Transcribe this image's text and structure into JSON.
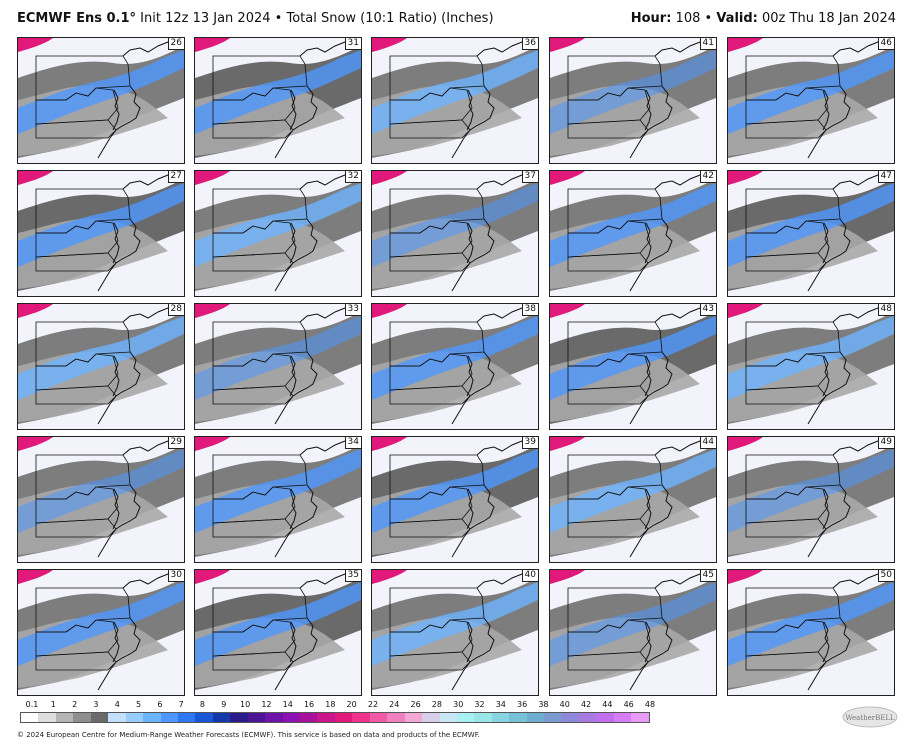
{
  "header": {
    "model": "ECMWF Ens 0.1°",
    "init": "Init 12z 13 Jan 2024",
    "bullet": "•",
    "product": "Total Snow (10:1 Ratio) (Inches)",
    "hour_label": "Hour:",
    "hour_value": "108",
    "valid_label": "Valid:",
    "valid_value": "00z Thu 18 Jan 2024"
  },
  "members": [
    "26",
    "31",
    "36",
    "41",
    "46",
    "27",
    "32",
    "37",
    "42",
    "47",
    "28",
    "33",
    "38",
    "43",
    "48",
    "29",
    "34",
    "39",
    "44",
    "49",
    "30",
    "35",
    "40",
    "45",
    "50"
  ],
  "legend": {
    "tick_labels": [
      "0.1",
      "1",
      "2",
      "3",
      "4",
      "5",
      "6",
      "7",
      "8",
      "9",
      "10",
      "12",
      "14",
      "16",
      "18",
      "20",
      "22",
      "24",
      "26",
      "28",
      "30",
      "32",
      "34",
      "36",
      "38",
      "40",
      "42",
      "44",
      "46",
      "48"
    ],
    "colors": [
      "#ffffff",
      "#dedede",
      "#b5b5b5",
      "#8e8e8e",
      "#6a6a6a",
      "#c4e0ff",
      "#9acdff",
      "#6db4ff",
      "#4d97ff",
      "#2f78f2",
      "#1a56d8",
      "#133aa8",
      "#2a1c8a",
      "#4b1596",
      "#6e13a8",
      "#8c12b4",
      "#a8129a",
      "#c9148a",
      "#e0197a",
      "#f0348e",
      "#f25aa6",
      "#f080c0",
      "#f4a8d4",
      "#d8d0ea",
      "#c8e6f4",
      "#a8f0f4",
      "#9ae6e6",
      "#88d4e0",
      "#78c2d8",
      "#6eaed0",
      "#7a9ad0",
      "#8e88d8",
      "#a67ae0",
      "#c070ee",
      "#d87cf6",
      "#e89cf8"
    ],
    "logo_text": "WeatherBELL"
  },
  "footer": {
    "credit": "© 2024 European Centre for Medium-Range Weather Forecasts (ECMWF). This service is based on data and products of the ECMWF."
  }
}
